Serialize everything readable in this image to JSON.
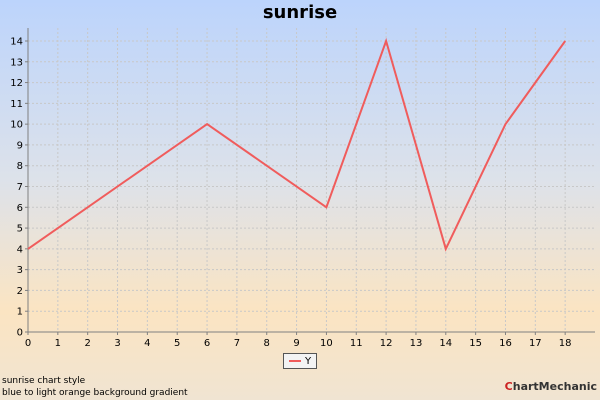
{
  "colors": {
    "series": "#f05c5c",
    "axis": "#808080",
    "grid": "#c8c8c8"
  },
  "chart_data": {
    "type": "line",
    "title": "sunrise",
    "xlabel": "",
    "ylabel": "",
    "xlim": [
      0,
      19
    ],
    "ylim": [
      0,
      14
    ],
    "x_ticks": [
      0,
      1,
      2,
      3,
      4,
      5,
      6,
      7,
      8,
      9,
      10,
      11,
      12,
      13,
      14,
      15,
      16,
      17,
      18
    ],
    "y_ticks": [
      0,
      1,
      2,
      3,
      4,
      5,
      6,
      7,
      8,
      9,
      10,
      11,
      12,
      13,
      14
    ],
    "grid": true,
    "legend_position": "bottom-center",
    "series": [
      {
        "name": "Y",
        "x": [
          0,
          6,
          10,
          12,
          14,
          16,
          18
        ],
        "y": [
          4,
          10,
          6,
          14,
          4,
          10,
          14
        ]
      }
    ]
  },
  "footnote": {
    "line1": "sunrise chart style",
    "line2": "blue to light orange background gradient"
  },
  "brand": {
    "prefix": "C",
    "rest": "hartMechanic"
  }
}
